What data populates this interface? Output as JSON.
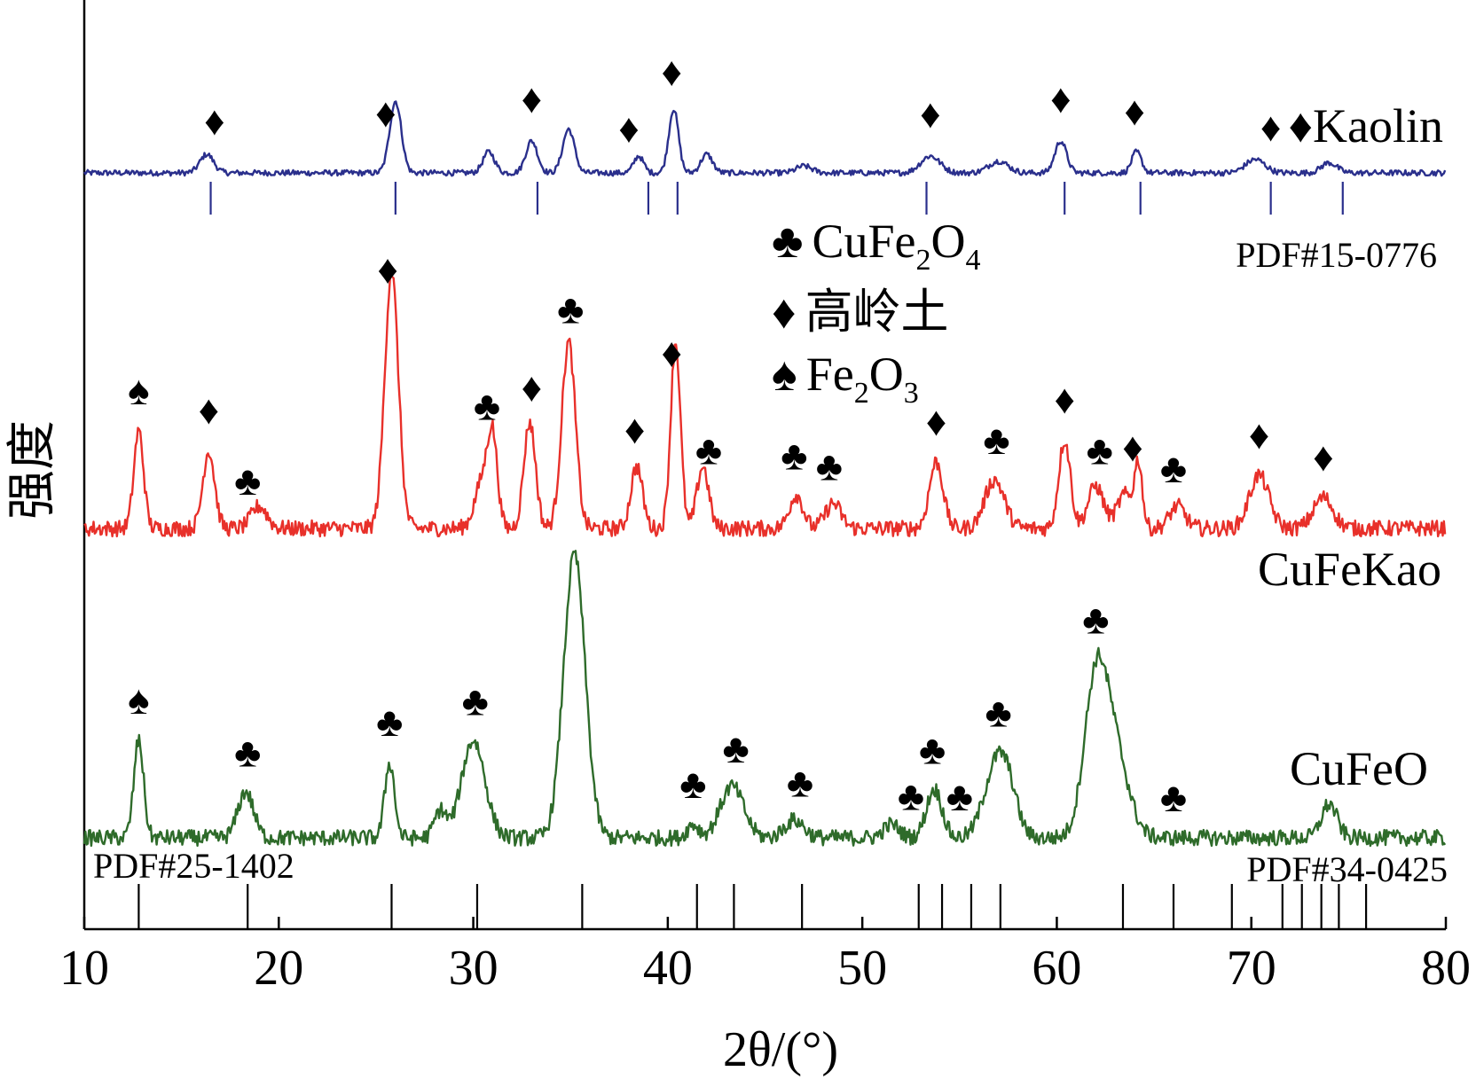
{
  "chart_data": {
    "type": "line",
    "xlabel": "2θ/(°)",
    "ylabel": "强度",
    "xlim": [
      10,
      80
    ],
    "xticks": [
      10,
      20,
      30,
      40,
      50,
      60,
      70,
      80
    ],
    "colors": {
      "kaolin": "#2a2f8c",
      "cufekao": "#e8302a",
      "cufeo": "#2e6b2a",
      "axis": "#000000"
    },
    "legend": [
      {
        "symbol": "club",
        "glyph": "♣",
        "base": "CuFe",
        "sub1": "2",
        "mid": "O",
        "sub2": "4"
      },
      {
        "symbol": "diamond",
        "glyph": "♦",
        "text": "高岭土"
      },
      {
        "symbol": "spade",
        "glyph": "♠",
        "base": "Fe",
        "sub1": "2",
        "mid": "O",
        "sub2": "3"
      }
    ],
    "series": [
      {
        "name": "Kaolin",
        "key": "kaolin",
        "baseline": 0,
        "peaks": [
          [
            16.3,
            22,
            0.35
          ],
          [
            26.0,
            85,
            0.3
          ],
          [
            30.8,
            25,
            0.3
          ],
          [
            33.0,
            38,
            0.3
          ],
          [
            34.9,
            52,
            0.3
          ],
          [
            38.5,
            20,
            0.25
          ],
          [
            40.3,
            76,
            0.25
          ],
          [
            42.0,
            22,
            0.3
          ],
          [
            47.0,
            8,
            0.4
          ],
          [
            53.5,
            20,
            0.5
          ],
          [
            57.0,
            14,
            0.5
          ],
          [
            60.2,
            38,
            0.3
          ],
          [
            64.1,
            25,
            0.25
          ],
          [
            70.2,
            16,
            0.5
          ],
          [
            74.0,
            12,
            0.4
          ]
        ],
        "markers": [
          {
            "x": 16.7,
            "symbol": "♦"
          },
          {
            "x": 25.5,
            "symbol": "♦"
          },
          {
            "x": 33.0,
            "symbol": "♦"
          },
          {
            "x": 38.0,
            "symbol": "♦"
          },
          {
            "x": 40.2,
            "symbol": "♦"
          },
          {
            "x": 53.5,
            "symbol": "♦"
          },
          {
            "x": 60.2,
            "symbol": "♦"
          },
          {
            "x": 64.0,
            "symbol": "♦"
          },
          {
            "x": 71.0,
            "symbol": "♦"
          }
        ],
        "reference": {
          "label": "PDF#15-0776",
          "lines": [
            16.5,
            26.0,
            33.3,
            39.0,
            40.5,
            53.3,
            60.4,
            64.3,
            71.0,
            74.7
          ]
        }
      },
      {
        "name": "CuFeKao",
        "key": "cufekao",
        "baseline": 0,
        "peaks": [
          [
            12.8,
            110,
            0.25
          ],
          [
            16.4,
            88,
            0.3
          ],
          [
            19.0,
            25,
            0.4
          ],
          [
            25.8,
            290,
            0.35
          ],
          [
            30.5,
            55,
            0.4
          ],
          [
            31.0,
            90,
            0.25
          ],
          [
            32.9,
            120,
            0.3
          ],
          [
            34.9,
            210,
            0.35
          ],
          [
            38.4,
            70,
            0.3
          ],
          [
            40.4,
            210,
            0.25
          ],
          [
            41.8,
            70,
            0.3
          ],
          [
            46.6,
            38,
            0.35
          ],
          [
            48.5,
            28,
            0.4
          ],
          [
            53.8,
            75,
            0.35
          ],
          [
            56.8,
            55,
            0.5
          ],
          [
            60.4,
            100,
            0.3
          ],
          [
            62.0,
            48,
            0.4
          ],
          [
            63.5,
            38,
            0.4
          ],
          [
            64.2,
            70,
            0.2
          ],
          [
            66.2,
            25,
            0.4
          ],
          [
            70.4,
            60,
            0.5
          ],
          [
            73.7,
            35,
            0.5
          ]
        ],
        "markers": [
          {
            "x": 12.8,
            "symbol": "♠"
          },
          {
            "x": 16.4,
            "symbol": "♦"
          },
          {
            "x": 18.4,
            "symbol": "♣"
          },
          {
            "x": 25.6,
            "symbol": "♦"
          },
          {
            "x": 30.7,
            "symbol": "♣"
          },
          {
            "x": 33.0,
            "symbol": "♦"
          },
          {
            "x": 35.0,
            "symbol": "♣"
          },
          {
            "x": 38.3,
            "symbol": "♦"
          },
          {
            "x": 40.2,
            "symbol": "♦"
          },
          {
            "x": 42.1,
            "symbol": "♣"
          },
          {
            "x": 46.5,
            "symbol": "♣"
          },
          {
            "x": 48.3,
            "symbol": "♣"
          },
          {
            "x": 53.8,
            "symbol": "♦"
          },
          {
            "x": 56.9,
            "symbol": "♣"
          },
          {
            "x": 60.4,
            "symbol": "♦"
          },
          {
            "x": 62.2,
            "symbol": "♣"
          },
          {
            "x": 63.9,
            "symbol": "♦"
          },
          {
            "x": 66.0,
            "symbol": "♣"
          },
          {
            "x": 70.4,
            "symbol": "♦"
          },
          {
            "x": 73.7,
            "symbol": "♦"
          }
        ]
      },
      {
        "name": "CuFeO",
        "key": "cufeo",
        "baseline": 0,
        "peaks": [
          [
            12.8,
            110,
            0.25
          ],
          [
            18.3,
            52,
            0.4
          ],
          [
            25.7,
            85,
            0.25
          ],
          [
            28.3,
            30,
            0.3
          ],
          [
            30.0,
            110,
            0.6
          ],
          [
            35.2,
            320,
            0.55
          ],
          [
            41.3,
            15,
            0.3
          ],
          [
            43.3,
            58,
            0.6
          ],
          [
            46.5,
            20,
            0.5
          ],
          [
            51.5,
            15,
            0.4
          ],
          [
            53.7,
            55,
            0.4
          ],
          [
            56.8,
            72,
            0.6
          ],
          [
            57.5,
            45,
            0.5
          ],
          [
            62.0,
            168,
            0.6
          ],
          [
            63.0,
            90,
            0.7
          ],
          [
            74.0,
            38,
            0.4
          ]
        ],
        "markers": [
          {
            "x": 12.8,
            "symbol": "♠"
          },
          {
            "x": 18.4,
            "symbol": "♣"
          },
          {
            "x": 25.7,
            "symbol": "♣"
          },
          {
            "x": 30.1,
            "symbol": "♣"
          },
          {
            "x": 41.3,
            "symbol": "♣"
          },
          {
            "x": 43.5,
            "symbol": "♣"
          },
          {
            "x": 46.8,
            "symbol": "♣"
          },
          {
            "x": 52.5,
            "symbol": "♣"
          },
          {
            "x": 53.6,
            "symbol": "♣"
          },
          {
            "x": 55.0,
            "symbol": "♣"
          },
          {
            "x": 57.0,
            "symbol": "♣"
          },
          {
            "x": 62.0,
            "symbol": "♣"
          },
          {
            "x": 66.0,
            "symbol": "♣"
          }
        ],
        "reference": {
          "label_left": "PDF#25-1402",
          "label_right": "PDF#34-0425",
          "lines": [
            12.8,
            18.4,
            25.8,
            30.2,
            35.6,
            41.5,
            43.4,
            46.9,
            52.9,
            54.1,
            55.6,
            57.1,
            63.4,
            66.0,
            69.0,
            71.6,
            72.6,
            73.6,
            74.5,
            75.9
          ]
        }
      }
    ]
  }
}
